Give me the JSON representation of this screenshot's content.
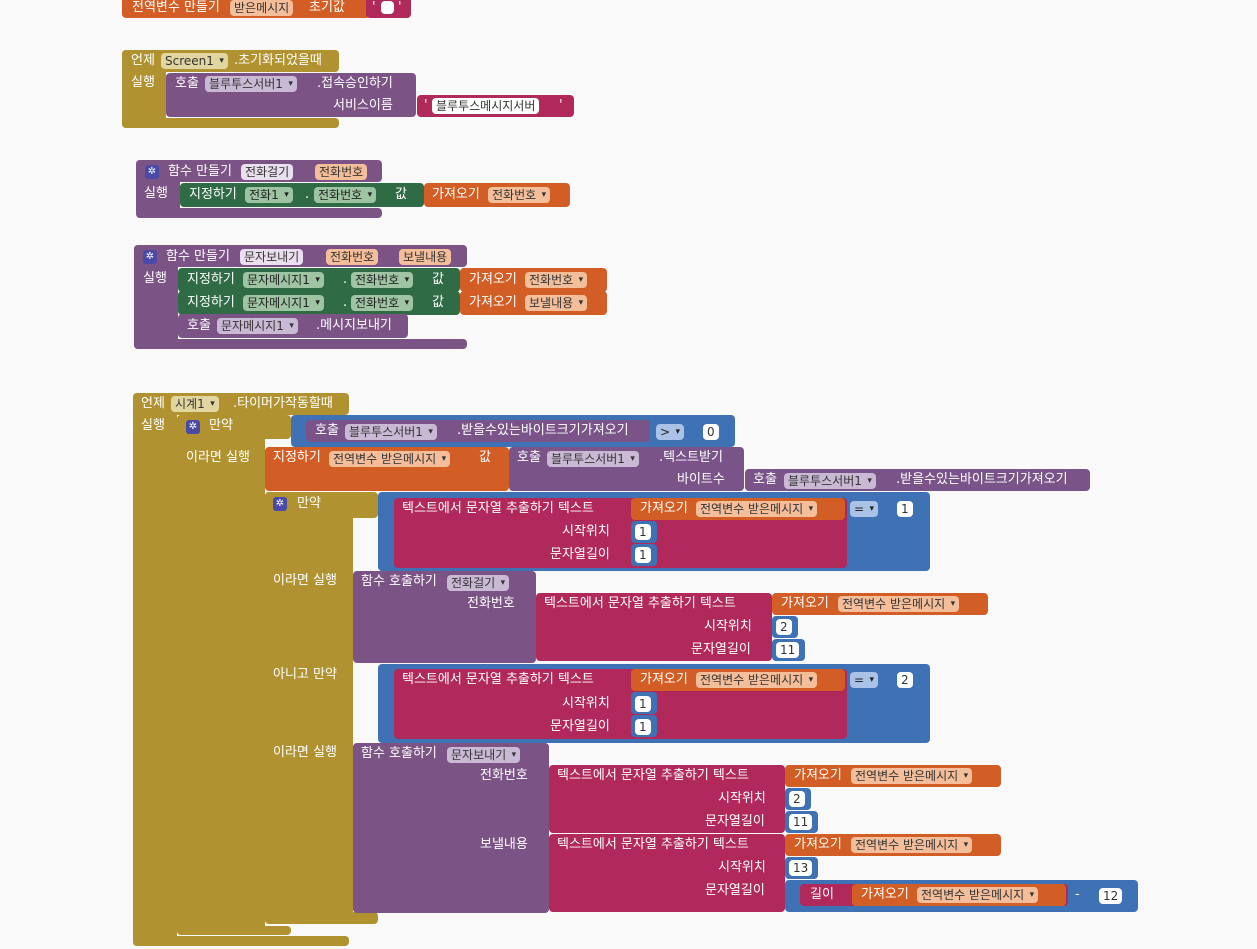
{
  "global_var": {
    "label": "전역변수 만들기",
    "name": "받은메시지",
    "init_label": "초기값",
    "str_open": "'",
    "str_close": "'"
  },
  "event1": {
    "when": "언제",
    "component": "Screen1",
    "event": ".초기화되었을때",
    "do": "실행",
    "call": "호출",
    "call_component": "블루투스서버1",
    "method": ".접속승인하기",
    "param": "서비스이름",
    "string_value": "블루투스메시지서버"
  },
  "proc1": {
    "label": "함수 만들기",
    "name": "전화걸기",
    "param": "전화번호",
    "do": "실행",
    "set": "지정하기",
    "set_component": "전화1",
    "set_property": "전화번호",
    "to": "값",
    "get": "가져오기",
    "get_var": "전화번호"
  },
  "proc2": {
    "label": "함수 만들기",
    "name": "문자보내기",
    "param1": "전화번호",
    "param2": "보낼내용",
    "do": "실행",
    "set": "지정하기",
    "set_component": "문자메시지1",
    "dot": ".",
    "set_property": "전화번호",
    "to": "값",
    "get": "가져오기",
    "get_var1": "전화번호",
    "get_var2": "보낼내용",
    "call": "호출",
    "call_component": "문자메시지1",
    "call_method": ".메시지보내기"
  },
  "event2": {
    "when": "언제",
    "component": "시계1",
    "event": ".타이머가작동할때",
    "do": "실행",
    "if": "만약",
    "then": "이라면 실행",
    "elseif": "아니고 만약",
    "call": "호출",
    "bt": "블루투스서버1",
    "bytes_available": ".받을수있는바이트크기가져오기",
    "gt": ">",
    "zero": "0",
    "set": "지정하기",
    "global_var": "전역변수 받은메시지",
    "to": "값",
    "receive_text": ".텍스트받기",
    "num_bytes": "바이트수",
    "segment": "텍스트에서 문자열 추출하기  텍스트",
    "get": "가져오기",
    "eq": "=",
    "start": "시작위치",
    "length": "문자열길이",
    "one": "1",
    "two": "2",
    "eleven": "11",
    "thirteen": "13",
    "twelve": "12",
    "minus": "-",
    "call_proc": "함수 호출하기",
    "proc_call1": "전화걸기",
    "proc_call2": "문자보내기",
    "phone": "전화번호",
    "content": "보낼내용",
    "len": "길이"
  },
  "colors": {
    "control": "#b09330",
    "procedure": "#7c5385",
    "setter": "#2f6b45",
    "variable": "#d25e25",
    "text": "#b1295b",
    "math": "#3f71b5"
  }
}
